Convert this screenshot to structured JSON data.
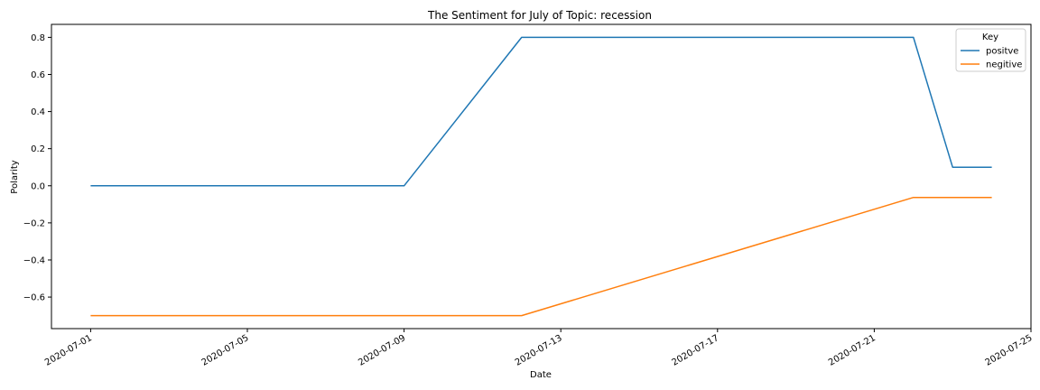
{
  "chart_data": {
    "type": "line",
    "title": "The Sentiment for July of Topic: recession",
    "xlabel": "Date",
    "ylabel": "Polarity",
    "xlim": [
      "2020-06-30",
      "2020-07-25"
    ],
    "ylim": [
      -0.77,
      0.87
    ],
    "x_ticks": [
      "2020-07-01",
      "2020-07-05",
      "2020-07-09",
      "2020-07-13",
      "2020-07-17",
      "2020-07-21",
      "2020-07-25"
    ],
    "y_ticks": [
      0.8,
      0.6,
      0.4,
      0.2,
      0.0,
      -0.2,
      -0.4,
      -0.6
    ],
    "y_tick_labels": [
      "0.8",
      "0.6",
      "0.4",
      "0.2",
      "0.0",
      "−0.2",
      "−0.4",
      "−0.6"
    ],
    "grid": false,
    "legend": {
      "title": "Key",
      "placement": "top-right"
    },
    "series": [
      {
        "name": "positve",
        "color": "#1f77b4",
        "points": [
          {
            "x": "2020-07-01",
            "y": 0.0
          },
          {
            "x": "2020-07-09",
            "y": 0.0
          },
          {
            "x": "2020-07-12",
            "y": 0.8
          },
          {
            "x": "2020-07-22",
            "y": 0.8
          },
          {
            "x": "2020-07-23",
            "y": 0.1
          },
          {
            "x": "2020-07-24",
            "y": 0.1
          }
        ]
      },
      {
        "name": "negitive",
        "color": "#ff7f0e",
        "points": [
          {
            "x": "2020-07-01",
            "y": -0.7
          },
          {
            "x": "2020-07-12",
            "y": -0.7
          },
          {
            "x": "2020-07-22",
            "y": -0.063
          },
          {
            "x": "2020-07-24",
            "y": -0.063
          }
        ]
      }
    ]
  }
}
